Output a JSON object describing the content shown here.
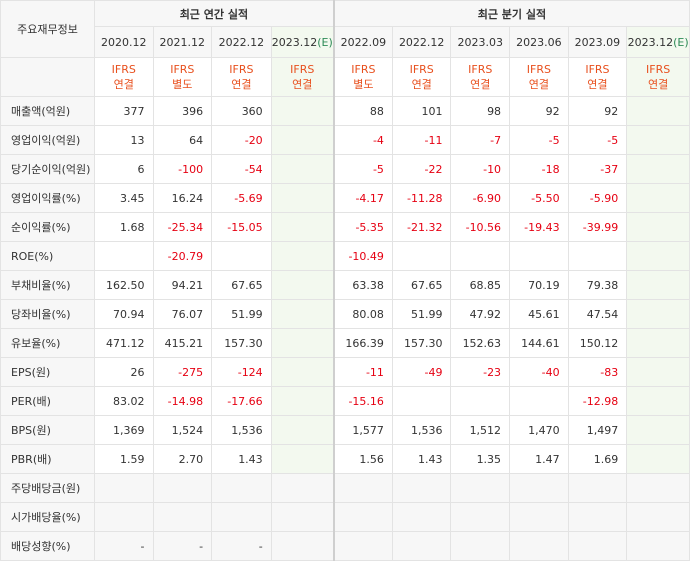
{
  "corner_label": "주요재무정보",
  "groups": {
    "annual": "최근 연간 실적",
    "quarterly": "최근 분기 실적"
  },
  "periods": [
    {
      "label": "2020.12",
      "est": ""
    },
    {
      "label": "2021.12",
      "est": ""
    },
    {
      "label": "2022.12",
      "est": ""
    },
    {
      "label": "2023.12",
      "est": "(E)"
    },
    {
      "label": "2022.09",
      "est": ""
    },
    {
      "label": "2022.12",
      "est": ""
    },
    {
      "label": "2023.03",
      "est": ""
    },
    {
      "label": "2023.06",
      "est": ""
    },
    {
      "label": "2023.09",
      "est": ""
    },
    {
      "label": "2023.12",
      "est": "(E)"
    }
  ],
  "ifrs": [
    {
      "l1": "IFRS",
      "l2": "연결"
    },
    {
      "l1": "IFRS",
      "l2": "별도"
    },
    {
      "l1": "IFRS",
      "l2": "연결"
    },
    {
      "l1": "IFRS",
      "l2": "연결"
    },
    {
      "l1": "IFRS",
      "l2": "별도"
    },
    {
      "l1": "IFRS",
      "l2": "연결"
    },
    {
      "l1": "IFRS",
      "l2": "연결"
    },
    {
      "l1": "IFRS",
      "l2": "연결"
    },
    {
      "l1": "IFRS",
      "l2": "연결"
    },
    {
      "l1": "IFRS",
      "l2": "연결"
    }
  ],
  "rows": [
    {
      "label": "매출액(억원)",
      "values": [
        "377",
        "396",
        "360",
        "",
        "88",
        "101",
        "98",
        "92",
        "92",
        ""
      ]
    },
    {
      "label": "영업이익(억원)",
      "values": [
        "13",
        "64",
        "-20",
        "",
        "-4",
        "-11",
        "-7",
        "-5",
        "-5",
        ""
      ]
    },
    {
      "label": "당기순이익(억원)",
      "values": [
        "6",
        "-100",
        "-54",
        "",
        "-5",
        "-22",
        "-10",
        "-18",
        "-37",
        ""
      ]
    },
    {
      "label": "영업이익률(%)",
      "values": [
        "3.45",
        "16.24",
        "-5.69",
        "",
        "-4.17",
        "-11.28",
        "-6.90",
        "-5.50",
        "-5.90",
        ""
      ]
    },
    {
      "label": "순이익률(%)",
      "values": [
        "1.68",
        "-25.34",
        "-15.05",
        "",
        "-5.35",
        "-21.32",
        "-10.56",
        "-19.43",
        "-39.99",
        ""
      ]
    },
    {
      "label": "ROE(%)",
      "values": [
        "",
        "-20.79",
        "",
        "",
        "-10.49",
        "",
        "",
        "",
        "",
        ""
      ]
    },
    {
      "label": "부채비율(%)",
      "values": [
        "162.50",
        "94.21",
        "67.65",
        "",
        "63.38",
        "67.65",
        "68.85",
        "70.19",
        "79.38",
        ""
      ]
    },
    {
      "label": "당좌비율(%)",
      "values": [
        "70.94",
        "76.07",
        "51.99",
        "",
        "80.08",
        "51.99",
        "47.92",
        "45.61",
        "47.54",
        ""
      ]
    },
    {
      "label": "유보율(%)",
      "values": [
        "471.12",
        "415.21",
        "157.30",
        "",
        "166.39",
        "157.30",
        "152.63",
        "144.61",
        "150.12",
        ""
      ]
    },
    {
      "label": "EPS(원)",
      "values": [
        "26",
        "-275",
        "-124",
        "",
        "-11",
        "-49",
        "-23",
        "-40",
        "-83",
        ""
      ]
    },
    {
      "label": "PER(배)",
      "values": [
        "83.02",
        "-14.98",
        "-17.66",
        "",
        "-15.16",
        "",
        "",
        "",
        "-12.98",
        ""
      ]
    },
    {
      "label": "BPS(원)",
      "values": [
        "1,369",
        "1,524",
        "1,536",
        "",
        "1,577",
        "1,536",
        "1,512",
        "1,470",
        "1,497",
        ""
      ]
    },
    {
      "label": "PBR(배)",
      "values": [
        "1.59",
        "2.70",
        "1.43",
        "",
        "1.56",
        "1.43",
        "1.35",
        "1.47",
        "1.69",
        ""
      ]
    },
    {
      "label": "주당배당금(원)",
      "values": [
        "",
        "",
        "",
        "",
        "",
        "",
        "",
        "",
        "",
        ""
      ]
    },
    {
      "label": "시가배당율(%)",
      "values": [
        "",
        "",
        "",
        "",
        "",
        "",
        "",
        "",
        "",
        ""
      ]
    },
    {
      "label": "배당성향(%)",
      "values": [
        "-",
        "-",
        "-",
        "",
        "",
        "",
        "",
        "",
        "",
        ""
      ]
    }
  ],
  "colors": {
    "negative": "#e60012",
    "ifrs": "#e8501e",
    "estimate_bg": "#f3f9ef",
    "estimate_label": "#2e8b57"
  }
}
